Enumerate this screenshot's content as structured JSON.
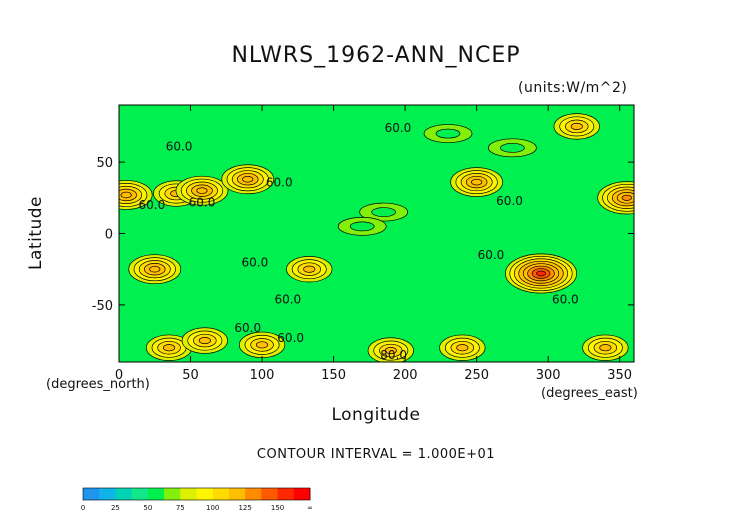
{
  "chart_data": {
    "type": "heatmap",
    "title": "NLWRS_1962-ANN_NCEP",
    "units": "(units:W/m^2)",
    "xlabel": "Longitude",
    "ylabel": "Latitude",
    "x_unit": "(degrees_east)",
    "y_unit": "(degrees_north)",
    "xlim": [
      0,
      360
    ],
    "ylim": [
      -90,
      90
    ],
    "xticks": [
      0,
      50,
      100,
      150,
      200,
      250,
      300,
      350
    ],
    "yticks": [
      -50,
      0,
      50
    ],
    "contour_interval": "CONTOUR INTERVAL = 1.000E+01",
    "background_level": 60,
    "features": [
      {
        "lon": 5,
        "lat": 27,
        "peak": 110
      },
      {
        "lon": 40,
        "lat": 28,
        "peak": 100
      },
      {
        "lon": 58,
        "lat": 30,
        "peak": 110
      },
      {
        "lon": 90,
        "lat": 38,
        "peak": 105
      },
      {
        "lon": 25,
        "lat": -25,
        "peak": 110
      },
      {
        "lon": 133,
        "lat": -25,
        "peak": 100
      },
      {
        "lon": 250,
        "lat": 36,
        "peak": 110
      },
      {
        "lon": 295,
        "lat": -28,
        "peak": 140
      },
      {
        "lon": 355,
        "lat": 25,
        "peak": 115
      },
      {
        "lon": 320,
        "lat": 75,
        "peak": 95
      },
      {
        "lon": 185,
        "lat": 15,
        "peak": 45
      },
      {
        "lon": 170,
        "lat": 5,
        "peak": 45
      },
      {
        "lon": 230,
        "lat": 70,
        "peak": 45
      },
      {
        "lon": 275,
        "lat": 60,
        "peak": 45
      },
      {
        "lon": 35,
        "lat": -80,
        "peak": 95
      },
      {
        "lon": 60,
        "lat": -75,
        "peak": 95
      },
      {
        "lon": 100,
        "lat": -78,
        "peak": 100
      },
      {
        "lon": 190,
        "lat": -82,
        "peak": 100
      },
      {
        "lon": 240,
        "lat": -80,
        "peak": 95
      },
      {
        "lon": 340,
        "lat": -80,
        "peak": 100
      }
    ],
    "contour_labels": [
      {
        "text": "60.0",
        "lon": 42,
        "lat": 58
      },
      {
        "text": "60.0",
        "lon": 195,
        "lat": 71
      },
      {
        "text": "60.0",
        "lon": 112,
        "lat": 33
      },
      {
        "text": "60.0",
        "lon": 58,
        "lat": 19
      },
      {
        "text": "60.0",
        "lon": 23,
        "lat": 17
      },
      {
        "text": "60.0",
        "lon": 273,
        "lat": 20
      },
      {
        "text": "60.0",
        "lon": 95,
        "lat": -23
      },
      {
        "text": "60.0",
        "lon": 260,
        "lat": -18
      },
      {
        "text": "60.0",
        "lon": 312,
        "lat": -49
      },
      {
        "text": "60.0",
        "lon": 118,
        "lat": -49
      },
      {
        "text": "60.0",
        "lon": 90,
        "lat": -69
      },
      {
        "text": "60.0",
        "lon": 120,
        "lat": -76
      },
      {
        "text": "80.0",
        "lon": 192,
        "lat": -88
      }
    ],
    "colorbar": {
      "ticks": [
        "0",
        "25",
        "50",
        "75",
        "100",
        "125",
        "150",
        "∞"
      ],
      "colors": [
        "#1e96f0",
        "#10b4e6",
        "#00d2b4",
        "#14e68c",
        "#00f050",
        "#82f00a",
        "#dcf000",
        "#fff500",
        "#ffdc00",
        "#ffbe00",
        "#ff8c00",
        "#ff5a00",
        "#ff2800",
        "#ff0000"
      ]
    }
  }
}
